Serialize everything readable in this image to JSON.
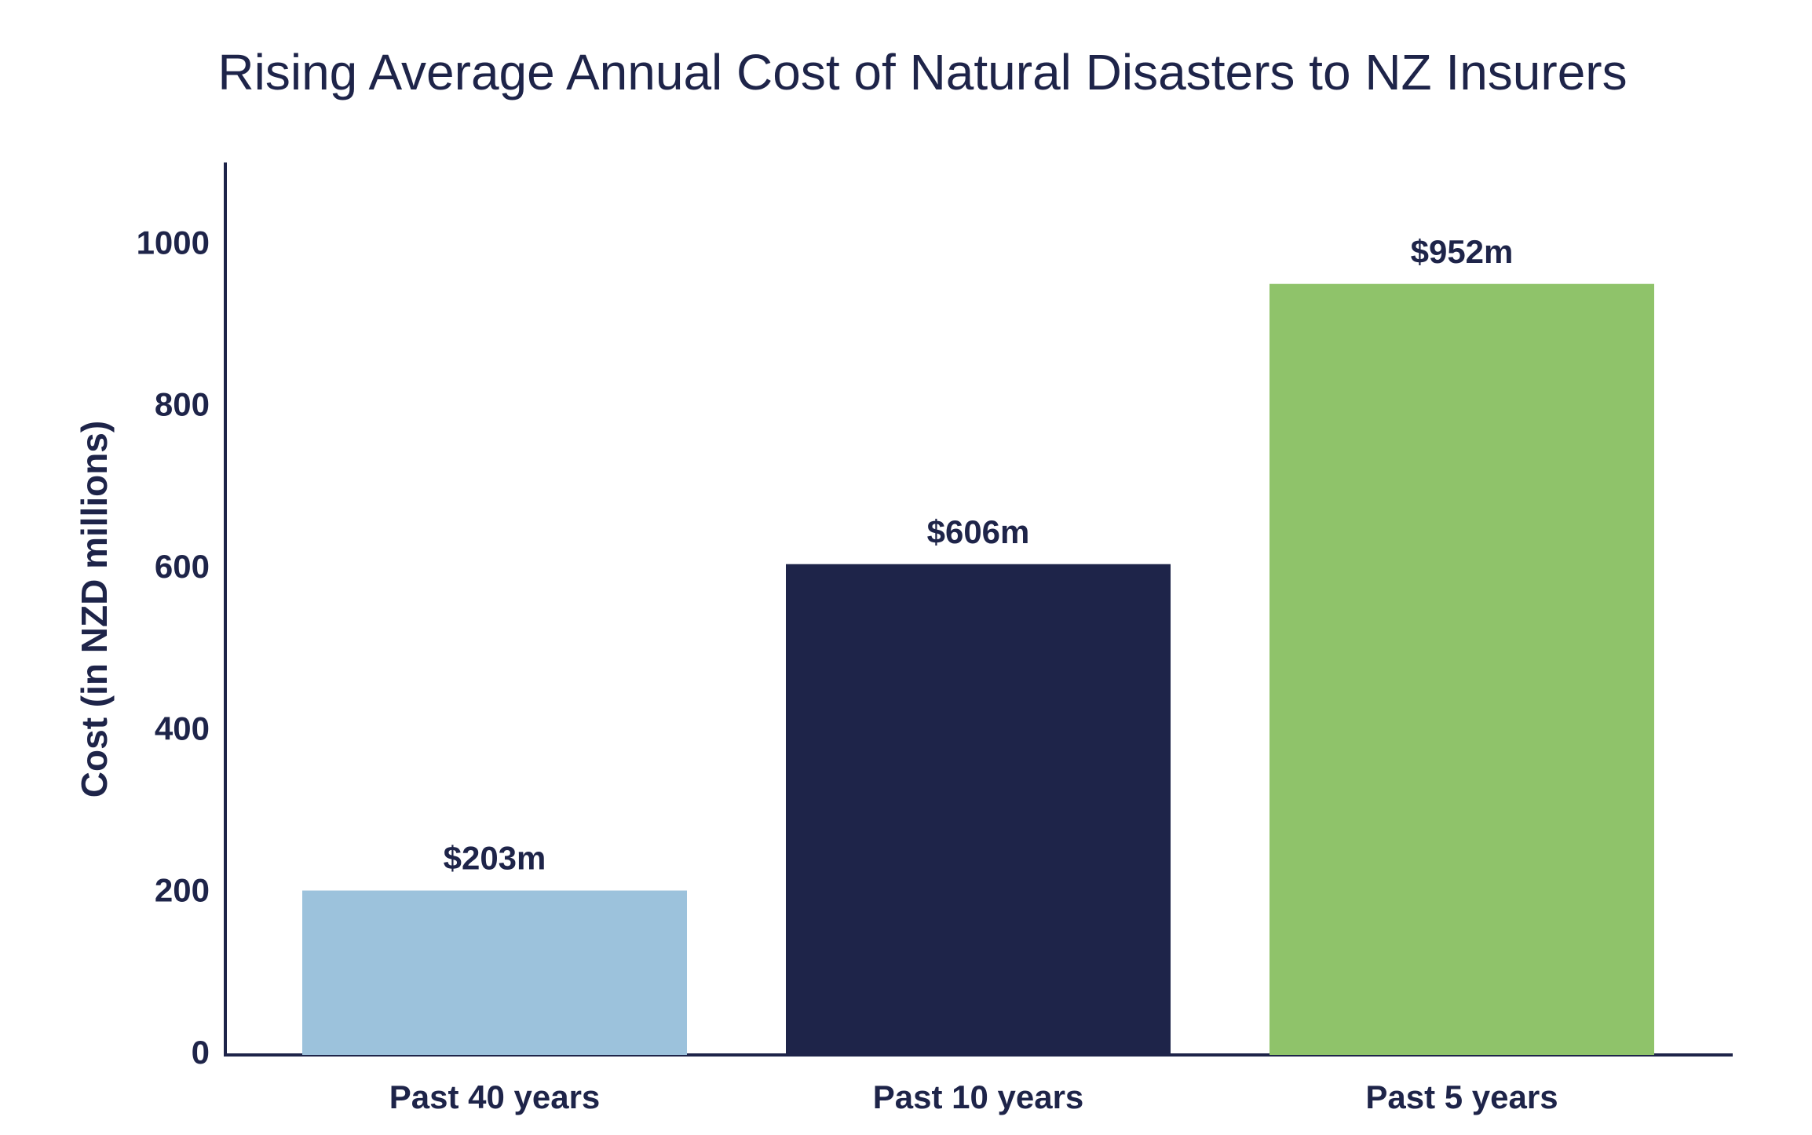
{
  "chart_data": {
    "type": "bar",
    "title": "Rising Average Annual Cost of Natural Disasters to NZ Insurers",
    "y_label": "Cost (in NZD millions)",
    "categories": [
      "Past 40 years",
      "Past 10 years",
      "Past 5 years"
    ],
    "values": [
      203,
      606,
      952
    ],
    "value_labels": [
      "$203m",
      "$606m",
      "$952m"
    ],
    "colors": [
      "#9cc2dc",
      "#1e2449",
      "#8fc36a"
    ],
    "ylim": [
      0,
      1100
    ],
    "yticks": [
      0,
      200,
      400,
      600,
      800,
      1000
    ],
    "grid": false
  }
}
